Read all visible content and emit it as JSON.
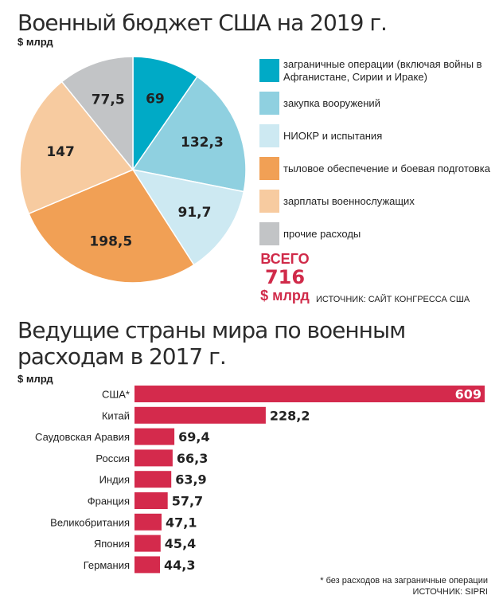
{
  "pie_chart": {
    "title": "Военный бюджет США на 2019 г.",
    "unit": "$ млрд",
    "total_label": "ВСЕГО",
    "total_value": "716",
    "total_unit": "$ млрд",
    "source": "ИСТОЧНИК: САЙТ КОНГРЕССА США"
  },
  "bar_chart": {
    "title_line1": "Ведущие страны мира по военным",
    "title_line2": "расходам в 2017 г.",
    "unit": "$ млрд",
    "footnote": "* без расходов на заграничные операции",
    "source": "ИСТОЧНИК: SIPRI"
  },
  "chart_data": [
    {
      "type": "pie",
      "title": "Военный бюджет США на 2019 г.",
      "unit": "$ млрд",
      "total": 716,
      "legend_position": "right",
      "slices": [
        {
          "label": "заграничные операции (включая войны в Афганистане, Сирии и Ираке)",
          "value": 69,
          "value_label": "69",
          "color": "#00aac6"
        },
        {
          "label": "закупка вооружений",
          "value": 132.3,
          "value_label": "132,3",
          "color": "#8fd0e0"
        },
        {
          "label": "НИОКР и испытания",
          "value": 91.7,
          "value_label": "91,7",
          "color": "#cde9f2"
        },
        {
          "label": "тыловое обеспечение и боевая подготовка",
          "value": 198.5,
          "value_label": "198,5",
          "color": "#f1a055"
        },
        {
          "label": "зарплаты военнослужащих",
          "value": 147,
          "value_label": "147",
          "color": "#f7cba0"
        },
        {
          "label": "прочие расходы",
          "value": 77.5,
          "value_label": "77,5",
          "color": "#c2c4c6"
        }
      ]
    },
    {
      "type": "bar",
      "orientation": "horizontal",
      "title": "Ведущие страны мира по военным расходам в 2017 г.",
      "unit": "$ млрд",
      "color": "#d42a4c",
      "categories": [
        "США*",
        "Китай",
        "Саудовская Аравия",
        "Россия",
        "Индия",
        "Франция",
        "Великобритания",
        "Япония",
        "Германия"
      ],
      "values": [
        609,
        228.2,
        69.4,
        66.3,
        63.9,
        57.7,
        47.1,
        45.4,
        44.3
      ],
      "value_labels": [
        "609",
        "228,2",
        "69,4",
        "66,3",
        "63,9",
        "57,7",
        "47,1",
        "45,4",
        "44,3"
      ]
    }
  ]
}
